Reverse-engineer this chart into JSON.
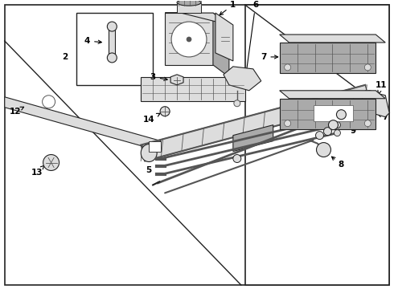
{
  "bg_color": "#ffffff",
  "lc": "#222222",
  "dg": "#555555",
  "lg": "#dddddd",
  "mg": "#aaaaaa"
}
